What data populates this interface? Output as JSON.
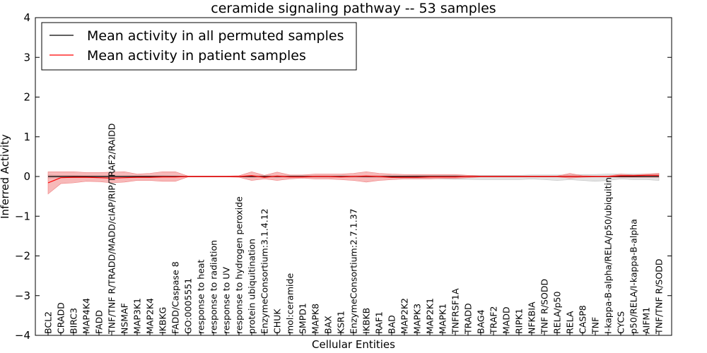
{
  "chart_data": {
    "type": "line",
    "title": "ceramide signaling pathway -- 53 samples",
    "xlabel": "Cellular Entities",
    "ylabel": "Inferred Activity",
    "ylim": [
      -4,
      4
    ],
    "yticks": [
      {
        "value": 4,
        "label": "4"
      },
      {
        "value": 3,
        "label": "3"
      },
      {
        "value": 2,
        "label": "2"
      },
      {
        "value": 1,
        "label": "1"
      },
      {
        "value": 0,
        "label": "0"
      },
      {
        "value": -1,
        "label": "−1"
      },
      {
        "value": -2,
        "label": "−2"
      },
      {
        "value": -3,
        "label": "−3"
      },
      {
        "value": -4,
        "label": "−4"
      }
    ],
    "grid": false,
    "legend_position": "top-left",
    "categories": [
      "BCL2",
      "CRADD",
      "BIRC3",
      "MAP4K4",
      "FADD",
      "TNF/TNF R/TRADD/MADD/cIAP/RIP/TRAF2/RAIDD",
      "NSMAF",
      "MAP3K1",
      "MAP2K4",
      "IKBKG",
      "FADD/Caspase 8",
      "GO:0005551",
      "response to heat",
      "response to radiation",
      "response to UV",
      "response to hydrogen peroxide",
      "protein ubiquitination",
      "EnzymeConsortium:3.1.4.12",
      "CHUK",
      "mol:ceramide",
      "SMPD1",
      "MAPK8",
      "BAX",
      "KSR1",
      "EnzymeConsortium:2.7.1.37",
      "IKBKB",
      "RAF1",
      "BAD",
      "MAP2K2",
      "MAPK3",
      "MAP2K1",
      "MAPK1",
      "TNFRSF1A",
      "TRADD",
      "BAG4",
      "TRAF2",
      "MADD",
      "RIPK1",
      "NFKBIA",
      "TNF R/SODD",
      "RELA/p50",
      "RELA",
      "CASP8",
      "TNF",
      "I-kappa-B-alpha/RELA/p50/ubiquitin",
      "CYCS",
      "p50/RELA/I-kappa-B-alpha",
      "AIFM1",
      "TNF/TNF R/SODD"
    ],
    "series": [
      {
        "name": "Mean activity in all permuted samples",
        "color": "#000000",
        "band_color": "#c0c0c0",
        "values": [
          0,
          0,
          0,
          0,
          0,
          0,
          0,
          0,
          0,
          0,
          0,
          0,
          0,
          0,
          0,
          0,
          0,
          0,
          0,
          0,
          0,
          0,
          0,
          0,
          0,
          0,
          0,
          0,
          0,
          0,
          0,
          0,
          0,
          0,
          0,
          0,
          0,
          0,
          0,
          0,
          0,
          0,
          0,
          0,
          0,
          0,
          0,
          0,
          0
        ],
        "upper": [
          0.04,
          0.03,
          0.03,
          0.02,
          0.02,
          0.02,
          0.02,
          0.02,
          0.02,
          0.02,
          0.01,
          0.01,
          0.01,
          0.01,
          0.01,
          0.01,
          0.02,
          0.02,
          0.02,
          0.02,
          0.02,
          0.02,
          0.02,
          0.02,
          0.02,
          0.02,
          0.02,
          0.02,
          0.02,
          0.03,
          0.03,
          0.03,
          0.03,
          0.03,
          0.03,
          0.03,
          0.03,
          0.03,
          0.04,
          0.04,
          0.04,
          0.04,
          0.05,
          0.05,
          0.06,
          0.06,
          0.06,
          0.06,
          0.06
        ],
        "lower": [
          -0.04,
          -0.03,
          -0.03,
          -0.02,
          -0.02,
          -0.02,
          -0.02,
          -0.02,
          -0.02,
          -0.02,
          -0.01,
          -0.01,
          -0.01,
          -0.01,
          -0.01,
          -0.01,
          -0.02,
          -0.02,
          -0.02,
          -0.02,
          -0.02,
          -0.02,
          -0.02,
          -0.02,
          -0.02,
          -0.02,
          -0.03,
          -0.03,
          -0.04,
          -0.05,
          -0.05,
          -0.06,
          -0.07,
          -0.07,
          -0.08,
          -0.08,
          -0.08,
          -0.08,
          -0.06,
          -0.08,
          -0.1,
          -0.08,
          -0.1,
          -0.12,
          -0.1,
          -0.06,
          -0.08,
          -0.08,
          -0.1
        ]
      },
      {
        "name": "Mean activity in patient samples",
        "color": "#ff0000",
        "band_color": "#f08080",
        "values": [
          -0.16,
          -0.03,
          -0.02,
          -0.02,
          -0.03,
          -0.04,
          -0.03,
          -0.02,
          -0.02,
          -0.01,
          -0.01,
          0,
          0,
          0,
          0,
          0,
          0.02,
          -0.02,
          0.01,
          -0.01,
          -0.01,
          0,
          0,
          -0.01,
          0,
          0.01,
          0,
          -0.02,
          -0.02,
          -0.02,
          -0.01,
          -0.01,
          -0.01,
          0,
          0,
          0,
          0,
          0,
          0,
          0,
          0,
          0,
          0,
          0,
          0,
          0.02,
          0.02,
          0.03,
          0.03
        ],
        "upper": [
          0.12,
          0.12,
          0.12,
          0.1,
          0.1,
          0.11,
          0.12,
          0.06,
          0.08,
          0.12,
          0.12,
          0.01,
          0.01,
          0.01,
          0.01,
          0.02,
          0.12,
          0.03,
          0.11,
          0.04,
          0.04,
          0.06,
          0.06,
          0.06,
          0.08,
          0.12,
          0.08,
          0.06,
          0.05,
          0.05,
          0.05,
          0.05,
          0.05,
          0.03,
          0.01,
          0.01,
          0.01,
          0.01,
          0.01,
          0.01,
          0.01,
          0.08,
          0.02,
          0.01,
          0.01,
          0.06,
          0.04,
          0.06,
          0.08
        ],
        "lower": [
          -0.44,
          -0.18,
          -0.16,
          -0.12,
          -0.13,
          -0.16,
          -0.14,
          -0.1,
          -0.1,
          -0.12,
          -0.12,
          -0.01,
          -0.01,
          -0.01,
          -0.01,
          -0.02,
          -0.1,
          -0.06,
          -0.1,
          -0.06,
          -0.04,
          -0.06,
          -0.06,
          -0.08,
          -0.1,
          -0.14,
          -0.1,
          -0.08,
          -0.06,
          -0.06,
          -0.06,
          -0.05,
          -0.05,
          -0.03,
          -0.01,
          -0.01,
          -0.01,
          -0.01,
          -0.01,
          -0.01,
          -0.01,
          -0.04,
          -0.02,
          -0.01,
          -0.01,
          -0.02,
          -0.02,
          -0.02,
          -0.02
        ]
      }
    ]
  }
}
